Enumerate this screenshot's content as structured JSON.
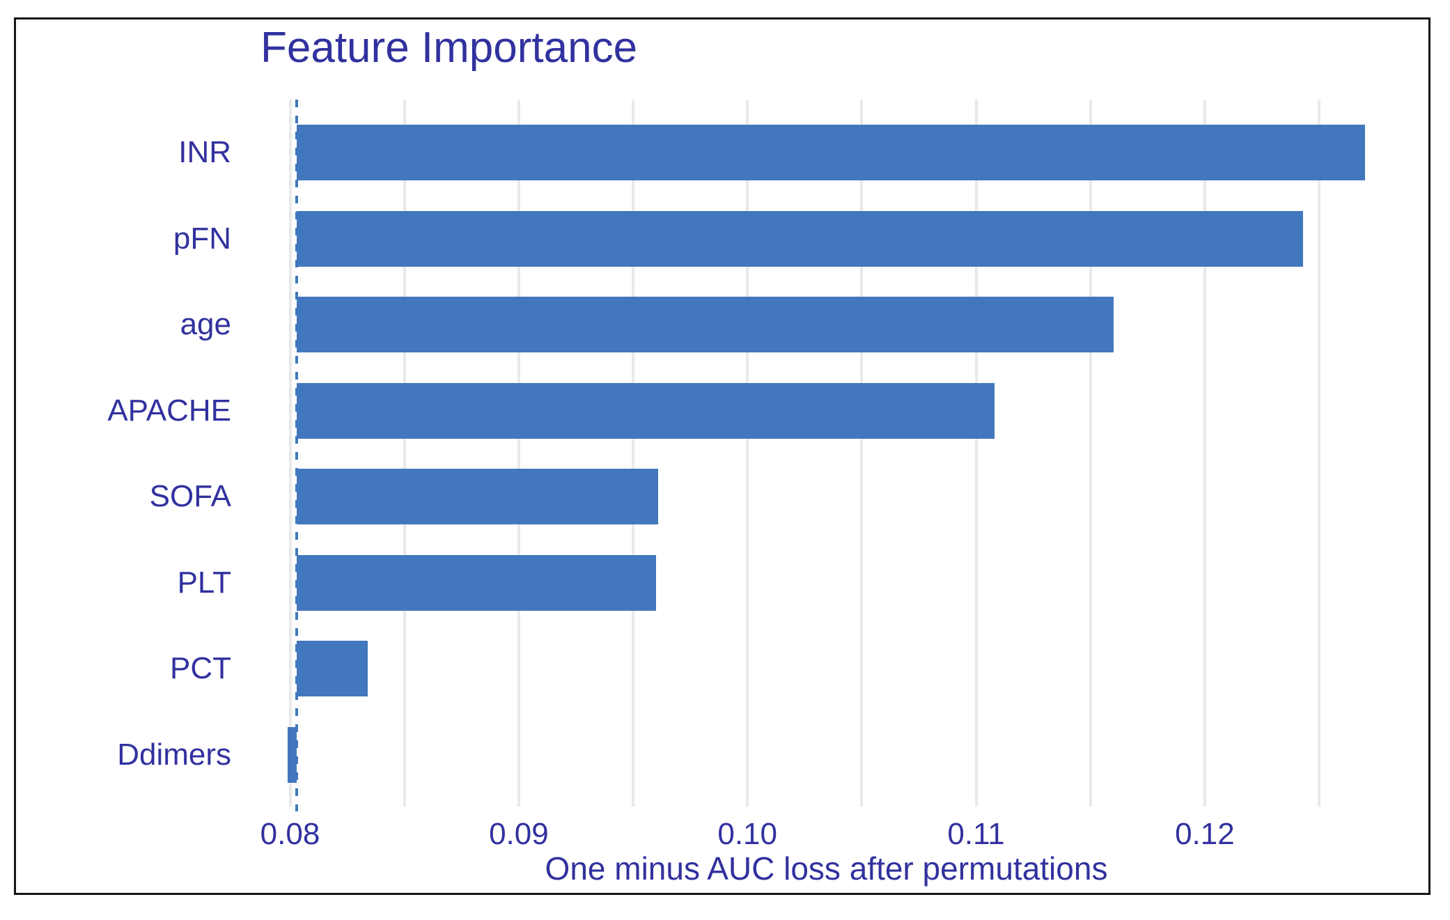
{
  "colors": {
    "text_ink": "#31319f",
    "bar_blue": "#4377bd",
    "gridline_gray": "#e9e9e9",
    "frame_black": "#161616"
  },
  "chart_data": {
    "type": "bar",
    "orientation": "horizontal",
    "title": "Feature Importance",
    "xlabel": "One minus AUC loss after permutations",
    "ylabel": "",
    "categories": [
      "INR",
      "pFN",
      "age",
      "APACHE",
      "SOFA",
      "PLT",
      "PCT",
      "Ddimers"
    ],
    "values": [
      0.127,
      0.1243,
      0.116,
      0.1108,
      0.0961,
      0.096,
      0.0834,
      0.0799
    ],
    "baseline": 0.0803,
    "baseline_style": "dashed-vertical-line",
    "xlim": [
      0.077,
      0.1299
    ],
    "x_major_ticks": [
      0.08,
      0.09,
      0.1,
      0.11,
      0.12
    ],
    "x_tick_labels": [
      "0.08",
      "0.09",
      "0.10",
      "0.11",
      "0.12"
    ],
    "x_gridlines": [
      0.08,
      0.085,
      0.09,
      0.095,
      0.1,
      0.105,
      0.11,
      0.115,
      0.12,
      0.125
    ],
    "grid": true,
    "legend": false
  }
}
